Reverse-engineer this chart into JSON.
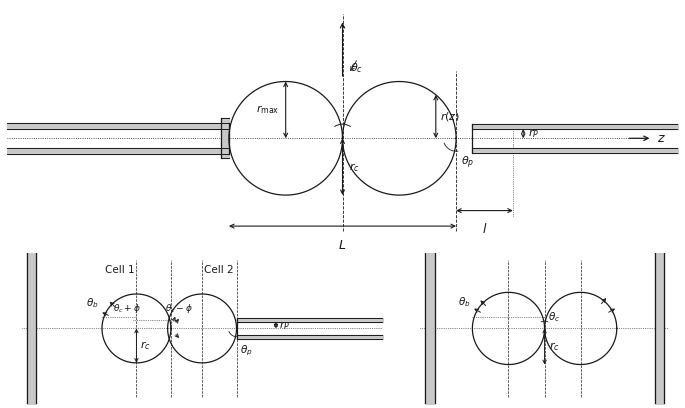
{
  "bg_color": "#ffffff",
  "line_color": "#1a1a1a",
  "gray_fill": "#c8c8c8",
  "gray_dark": "#888888",
  "fig_width": 6.85,
  "fig_height": 4.08,
  "dpi": 100
}
